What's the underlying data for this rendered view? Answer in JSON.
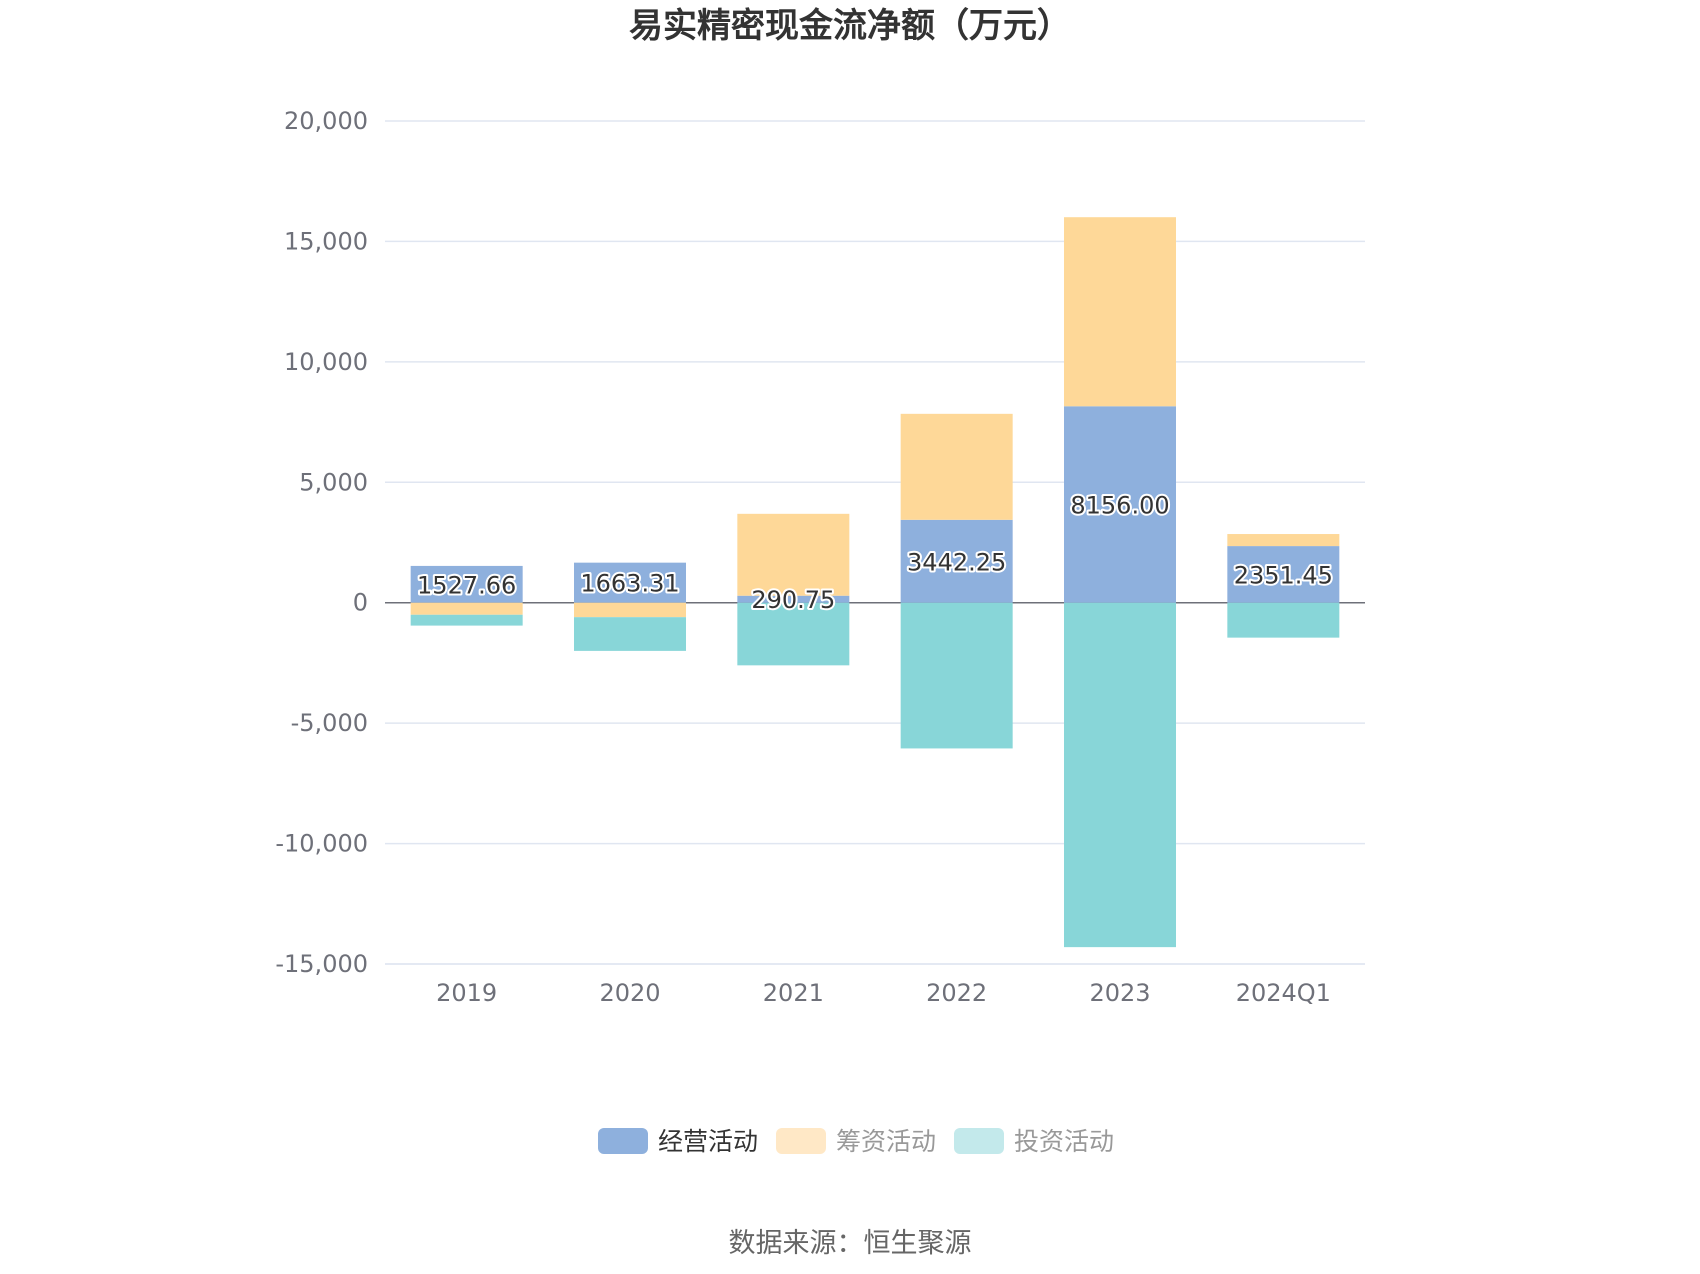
{
  "chart_data": {
    "type": "bar",
    "stacked": true,
    "title": "易实精密现金流净额（万元）",
    "categories": [
      "2019",
      "2020",
      "2021",
      "2022",
      "2023",
      "2024Q1"
    ],
    "ylim": [
      -15000,
      20000
    ],
    "yticks": [
      20000,
      15000,
      10000,
      5000,
      0,
      -5000,
      -10000,
      -15000
    ],
    "ytick_labels": [
      "20,000",
      "15,000",
      "10,000",
      "5,000",
      "0",
      "-5,000",
      "-10,000",
      "-15,000"
    ],
    "grid": true,
    "legend_position": "bottom",
    "series": [
      {
        "name": "经营活动",
        "color": "#8eb0dd",
        "values": [
          1527.66,
          1663.31,
          290.75,
          3442.25,
          8156.0,
          2351.45
        ],
        "labels": [
          "1527.66",
          "1663.31",
          "290.75",
          "3442.25",
          "8156.00",
          "2351.45"
        ]
      },
      {
        "name": "筹资活动",
        "color": "#fed898",
        "values": [
          -500,
          -600,
          3400,
          4400,
          7850,
          500
        ]
      },
      {
        "name": "投资活动",
        "color": "#88d6d8",
        "values": [
          -450,
          -1400,
          -2600,
          -6050,
          -14300,
          -1450
        ]
      }
    ]
  },
  "legend": {
    "items": [
      {
        "label": "经营活动",
        "swatch": "#8eb0dd",
        "text_color": "#333333"
      },
      {
        "label": "筹资活动",
        "swatch": "#ffe8c6",
        "text_color": "#999999"
      },
      {
        "label": "投资活动",
        "swatch": "#c3e9eb",
        "text_color": "#999999"
      }
    ]
  },
  "footer": {
    "source": "数据来源：恒生聚源"
  }
}
